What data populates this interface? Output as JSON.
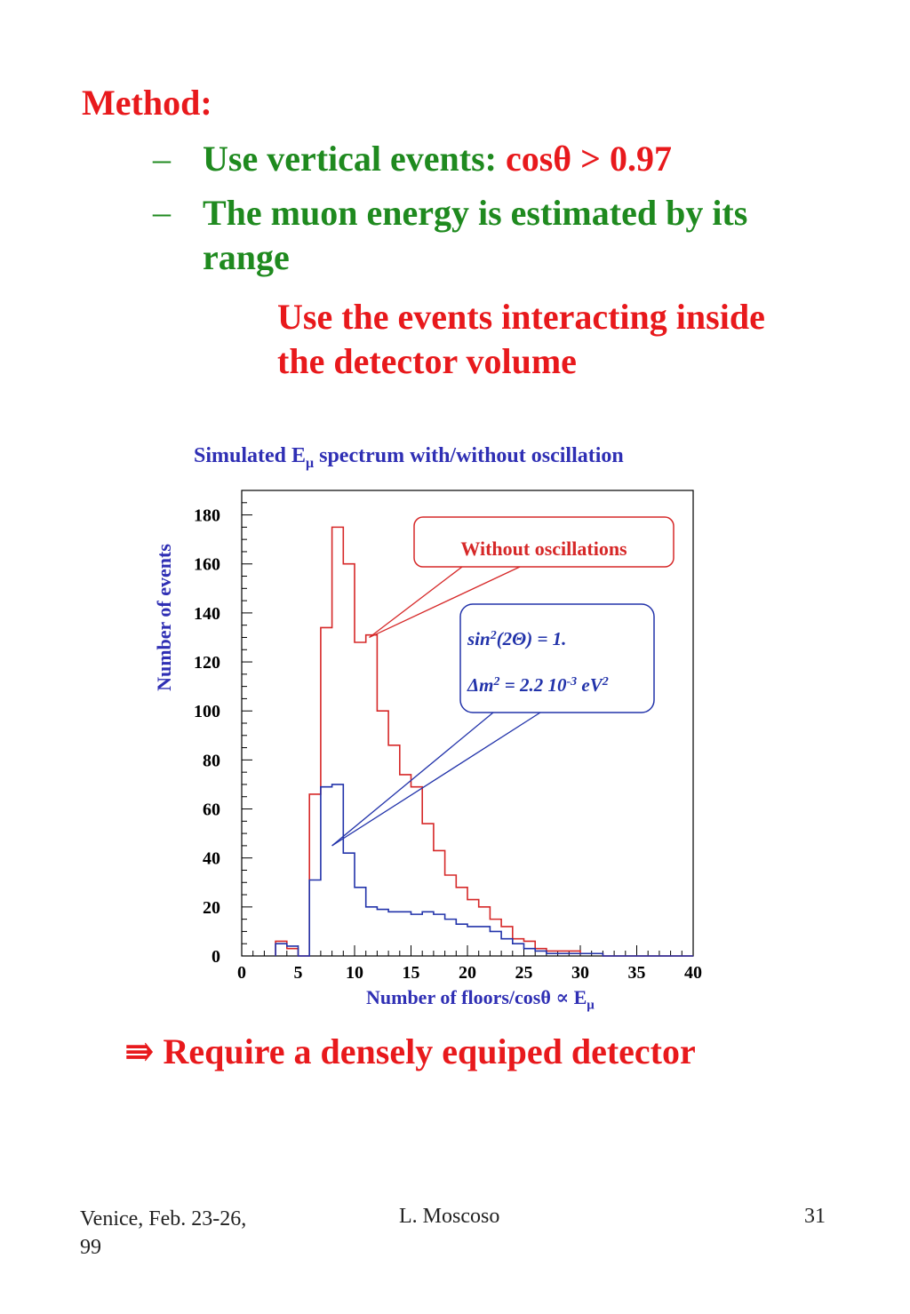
{
  "slide": {
    "method_label": "Method:",
    "bullets": [
      {
        "dash": "–",
        "text": "Use vertical events: ",
        "highlight": "cosθ > 0.97"
      },
      {
        "dash": "–",
        "text": "The muon energy is estimated by its range"
      }
    ],
    "interacting_note": "Use the events interacting inside the detector volume",
    "conclusion_arrow": "⇛",
    "conclusion": "Require a densely equiped detector"
  },
  "footer": {
    "left": "Venice, Feb. 23-26, 99",
    "center": "L. Moscoso",
    "page": "31"
  },
  "colors": {
    "red": "#e8191c",
    "green": "#1f8a1f",
    "blue": "#2f2fb4",
    "hist_red": "#d62828",
    "hist_blue": "#2233aa"
  },
  "chart_data": {
    "type": "histogram",
    "title_parts": {
      "before": "Simulated E",
      "sub": "μ",
      "after": " spectrum with/without oscillation"
    },
    "ylabel": "Number of events",
    "xlabel_parts": {
      "before": "Number of floors/cosθ  ∝ E",
      "sub": "μ"
    },
    "xlim": [
      0,
      40
    ],
    "ylim": [
      0,
      190
    ],
    "x_ticks": [
      0,
      5,
      10,
      15,
      20,
      25,
      30,
      35,
      40
    ],
    "y_ticks": [
      0,
      20,
      40,
      60,
      80,
      100,
      120,
      140,
      160,
      180
    ],
    "bin_width": 1,
    "bin_edges_start": 3,
    "series": [
      {
        "name": "Without oscillations",
        "color": "#d62828",
        "values": [
          6,
          3,
          0,
          66,
          134,
          175,
          160,
          128,
          131,
          100,
          86,
          74,
          69,
          54,
          43,
          33,
          28,
          23,
          20,
          15,
          12,
          7,
          6,
          3,
          2,
          2,
          2,
          1,
          1,
          0,
          0,
          0,
          0,
          0,
          0,
          0,
          0
        ]
      },
      {
        "name": "sin2(2θ) = 1., Δm2 = 2.2 10-3 eV2",
        "color": "#2233aa",
        "values": [
          5,
          4,
          0,
          31,
          69,
          70,
          42,
          28,
          20,
          19,
          18,
          18,
          17,
          18,
          17,
          15,
          13,
          12,
          12,
          10,
          7,
          5,
          3,
          2,
          1,
          1,
          1,
          1,
          1,
          0,
          0,
          0,
          0,
          0,
          0,
          0,
          0
        ]
      }
    ],
    "annotations": {
      "without_osc": "Without oscillations",
      "osc_line1": {
        "a": "sin",
        "sup1": "2",
        "b": "(2Θ) = 1."
      },
      "osc_line2": {
        "a": "Δm",
        "sup1": "2",
        "b": " = 2.2 10",
        "sup2": "-3",
        "c": " eV",
        "sup3": "2"
      }
    }
  }
}
